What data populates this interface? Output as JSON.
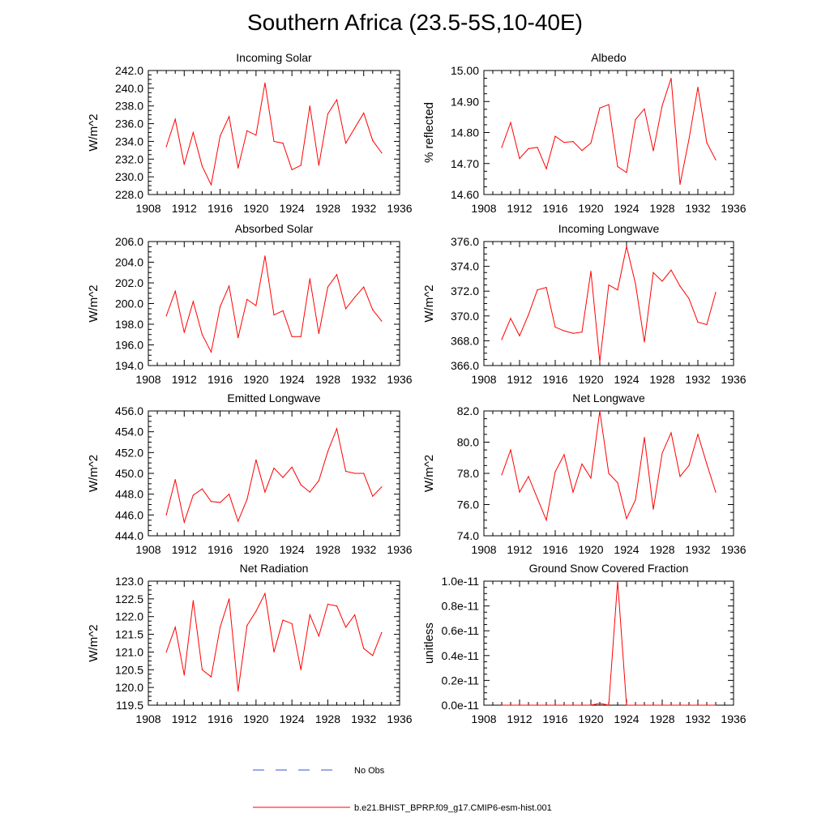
{
  "title": "Southern Africa (23.5-5S,10-40E)",
  "colors": {
    "model": "#ff0000",
    "obs": "#3355cc"
  },
  "legend": {
    "obs_label": "No Obs",
    "model_label": "b.e21.BHIST_BPRP.f09_g17.CMIP6-esm-hist.001"
  },
  "chart_data": [
    {
      "type": "line",
      "title": "Incoming Solar",
      "ylabel": "W/m^2",
      "xlim": [
        1908,
        1936
      ],
      "xticks": [
        "1908",
        "1912",
        "1916",
        "1920",
        "1924",
        "1928",
        "1932",
        "1936"
      ],
      "ylim": [
        228,
        242
      ],
      "yticks": [
        "228.0",
        "230.0",
        "232.0",
        "234.0",
        "236.0",
        "238.0",
        "240.0",
        "242.0"
      ],
      "x": [
        1910,
        1911,
        1912,
        1913,
        1914,
        1915,
        1916,
        1917,
        1918,
        1919,
        1920,
        1921,
        1922,
        1923,
        1924,
        1925,
        1926,
        1927,
        1928,
        1929,
        1930,
        1931,
        1932,
        1933,
        1934
      ],
      "series": [
        {
          "values": [
            233.4,
            236.5,
            231.4,
            235.0,
            231.2,
            229.1,
            234.6,
            236.8,
            231.0,
            235.2,
            234.7,
            240.6,
            234.0,
            233.8,
            230.8,
            231.3,
            238.0,
            231.3,
            237.1,
            238.7,
            233.8,
            235.5,
            237.2,
            234.1,
            232.7
          ]
        }
      ]
    },
    {
      "type": "line",
      "title": "Albedo",
      "ylabel": "% reflected",
      "xlim": [
        1908,
        1936
      ],
      "xticks": [
        "1908",
        "1912",
        "1916",
        "1920",
        "1924",
        "1928",
        "1932",
        "1936"
      ],
      "ylim": [
        14.6,
        15.0
      ],
      "yticks": [
        "14.60",
        "14.70",
        "14.80",
        "14.90",
        "15.00"
      ],
      "x": [
        1910,
        1911,
        1912,
        1913,
        1914,
        1915,
        1916,
        1917,
        1918,
        1919,
        1920,
        1921,
        1922,
        1923,
        1924,
        1925,
        1926,
        1927,
        1928,
        1929,
        1930,
        1931,
        1932,
        1933,
        1934
      ],
      "series": [
        {
          "values": [
            14.752,
            14.832,
            14.716,
            14.748,
            14.752,
            14.683,
            14.788,
            14.768,
            14.771,
            14.742,
            14.766,
            14.879,
            14.89,
            14.69,
            14.671,
            14.842,
            14.876,
            14.741,
            14.887,
            14.975,
            14.633,
            14.778,
            14.946,
            14.767,
            14.712
          ]
        }
      ]
    },
    {
      "type": "line",
      "title": "Absorbed Solar",
      "ylabel": "W/m^2",
      "xlim": [
        1908,
        1936
      ],
      "xticks": [
        "1908",
        "1912",
        "1916",
        "1920",
        "1924",
        "1928",
        "1932",
        "1936"
      ],
      "ylim": [
        194,
        206
      ],
      "yticks": [
        "194.0",
        "196.0",
        "198.0",
        "200.0",
        "202.0",
        "204.0",
        "206.0"
      ],
      "x": [
        1910,
        1911,
        1912,
        1913,
        1914,
        1915,
        1916,
        1917,
        1918,
        1919,
        1920,
        1921,
        1922,
        1923,
        1924,
        1925,
        1926,
        1927,
        1928,
        1929,
        1930,
        1931,
        1932,
        1933,
        1934
      ],
      "series": [
        {
          "values": [
            198.8,
            201.2,
            197.2,
            200.2,
            197.0,
            195.3,
            199.7,
            201.7,
            196.7,
            200.4,
            199.8,
            204.6,
            198.9,
            199.3,
            196.8,
            196.8,
            202.4,
            197.1,
            201.6,
            202.8,
            199.5,
            200.6,
            201.6,
            199.4,
            198.3
          ]
        }
      ]
    },
    {
      "type": "line",
      "title": "Incoming Longwave",
      "ylabel": "W/m^2",
      "xlim": [
        1908,
        1936
      ],
      "xticks": [
        "1908",
        "1912",
        "1916",
        "1920",
        "1924",
        "1928",
        "1932",
        "1936"
      ],
      "ylim": [
        366,
        376
      ],
      "yticks": [
        "366.0",
        "368.0",
        "370.0",
        "372.0",
        "374.0",
        "376.0"
      ],
      "x": [
        1910,
        1911,
        1912,
        1913,
        1914,
        1915,
        1916,
        1917,
        1918,
        1919,
        1920,
        1921,
        1922,
        1923,
        1924,
        1925,
        1926,
        1927,
        1928,
        1929,
        1930,
        1931,
        1932,
        1933,
        1934
      ],
      "series": [
        {
          "values": [
            368.1,
            369.8,
            368.4,
            370.1,
            372.1,
            372.3,
            369.1,
            368.8,
            368.6,
            368.7,
            373.6,
            366.3,
            372.5,
            372.1,
            375.6,
            372.6,
            367.9,
            373.5,
            372.8,
            373.7,
            372.4,
            371.4,
            369.5,
            369.3,
            371.9
          ]
        }
      ]
    },
    {
      "type": "line",
      "title": "Emitted Longwave",
      "ylabel": "W/m^2",
      "xlim": [
        1908,
        1936
      ],
      "xticks": [
        "1908",
        "1912",
        "1916",
        "1920",
        "1924",
        "1928",
        "1932",
        "1936"
      ],
      "ylim": [
        444,
        456
      ],
      "yticks": [
        "444.0",
        "446.0",
        "448.0",
        "450.0",
        "452.0",
        "454.0",
        "456.0"
      ],
      "x": [
        1910,
        1911,
        1912,
        1913,
        1914,
        1915,
        1916,
        1917,
        1918,
        1919,
        1920,
        1921,
        1922,
        1923,
        1924,
        1925,
        1926,
        1927,
        1928,
        1929,
        1930,
        1931,
        1932,
        1933,
        1934
      ],
      "series": [
        {
          "values": [
            446.0,
            449.4,
            445.3,
            447.9,
            448.5,
            447.3,
            447.2,
            448.0,
            445.4,
            447.5,
            451.3,
            448.2,
            450.5,
            449.6,
            450.6,
            448.9,
            448.2,
            449.3,
            452.1,
            454.3,
            450.2,
            450.0,
            450.0,
            447.8,
            448.7
          ]
        }
      ]
    },
    {
      "type": "line",
      "title": "Net Longwave",
      "ylabel": "W/m^2",
      "xlim": [
        1908,
        1936
      ],
      "xticks": [
        "1908",
        "1912",
        "1916",
        "1920",
        "1924",
        "1928",
        "1932",
        "1936"
      ],
      "ylim": [
        74,
        82
      ],
      "yticks": [
        "74.0",
        "76.0",
        "78.0",
        "80.0",
        "82.0"
      ],
      "x": [
        1910,
        1911,
        1912,
        1913,
        1914,
        1915,
        1916,
        1917,
        1918,
        1919,
        1920,
        1921,
        1922,
        1923,
        1924,
        1925,
        1926,
        1927,
        1928,
        1929,
        1930,
        1931,
        1932,
        1933,
        1934
      ],
      "series": [
        {
          "values": [
            77.9,
            79.5,
            76.8,
            77.8,
            76.4,
            75.0,
            78.1,
            79.2,
            76.8,
            78.6,
            77.7,
            82.0,
            78.0,
            77.4,
            75.1,
            76.3,
            80.3,
            75.7,
            79.3,
            80.6,
            77.8,
            78.5,
            80.5,
            78.6,
            76.8
          ]
        }
      ]
    },
    {
      "type": "line",
      "title": "Net Radiation",
      "ylabel": "W/m^2",
      "xlim": [
        1908,
        1936
      ],
      "xticks": [
        "1908",
        "1912",
        "1916",
        "1920",
        "1924",
        "1928",
        "1932",
        "1936"
      ],
      "ylim": [
        119.5,
        123.0
      ],
      "yticks": [
        "119.5",
        "120.0",
        "120.5",
        "121.0",
        "121.5",
        "122.0",
        "122.5",
        "123.0"
      ],
      "x": [
        1910,
        1911,
        1912,
        1913,
        1914,
        1915,
        1916,
        1917,
        1918,
        1919,
        1920,
        1921,
        1922,
        1923,
        1924,
        1925,
        1926,
        1927,
        1928,
        1929,
        1930,
        1931,
        1932,
        1933,
        1934
      ],
      "series": [
        {
          "values": [
            121.0,
            121.7,
            120.35,
            122.45,
            120.5,
            120.3,
            121.7,
            122.5,
            119.9,
            121.75,
            122.15,
            122.65,
            121.0,
            121.9,
            121.8,
            120.5,
            122.05,
            121.45,
            122.35,
            122.3,
            121.7,
            122.05,
            121.1,
            120.9,
            121.55
          ]
        }
      ]
    },
    {
      "type": "line",
      "title": "Ground Snow Covered Fraction",
      "ylabel": "unitless",
      "xlim": [
        1908,
        1936
      ],
      "xticks": [
        "1908",
        "1912",
        "1916",
        "1920",
        "1924",
        "1928",
        "1932",
        "1936"
      ],
      "ylim": [
        0,
        1e-11
      ],
      "yticks": [
        "0.0e-11",
        "0.2e-11",
        "0.4e-11",
        "0.6e-11",
        "0.8e-11",
        "1.0e-11"
      ],
      "x": [
        1910,
        1911,
        1912,
        1913,
        1914,
        1915,
        1916,
        1917,
        1918,
        1919,
        1920,
        1921,
        1922,
        1923,
        1924,
        1925,
        1926,
        1927,
        1928,
        1929,
        1930,
        1931,
        1932,
        1933,
        1934
      ],
      "series": [
        {
          "values": [
            0,
            0,
            0,
            0,
            0,
            0,
            0,
            0,
            0,
            0,
            0,
            1.5e-13,
            0,
            1e-11,
            0,
            0,
            0,
            0,
            0,
            0,
            0,
            0,
            0,
            0,
            0
          ]
        }
      ]
    }
  ]
}
